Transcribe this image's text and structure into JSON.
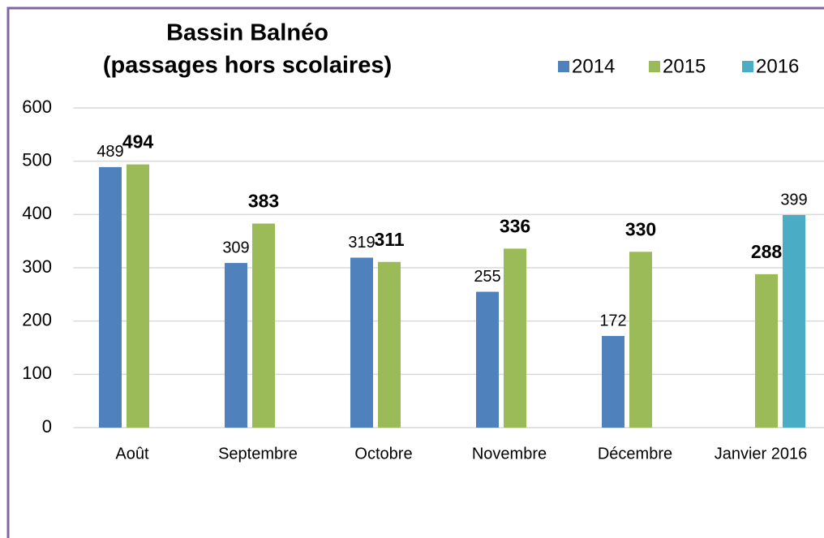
{
  "chart_data": {
    "type": "bar",
    "title": "Bassin Balnéo",
    "subtitle": "(passages hors scolaires)",
    "categories": [
      "Août",
      "Septembre",
      "Octobre",
      "Novembre",
      "Décembre",
      "Janvier 2016"
    ],
    "series": [
      {
        "name": "2014",
        "color": "#4f81bd",
        "values": [
          489,
          309,
          319,
          255,
          172,
          null
        ]
      },
      {
        "name": "2015",
        "color": "#9bbb59",
        "values": [
          494,
          383,
          311,
          336,
          330,
          288
        ]
      },
      {
        "name": "2016",
        "color": "#4bacc6",
        "values": [
          null,
          null,
          null,
          null,
          null,
          399
        ]
      }
    ],
    "ylim": [
      0,
      600
    ],
    "yticks": [
      0,
      100,
      200,
      300,
      400,
      500,
      600
    ],
    "grid": true,
    "legend": "top-right"
  }
}
